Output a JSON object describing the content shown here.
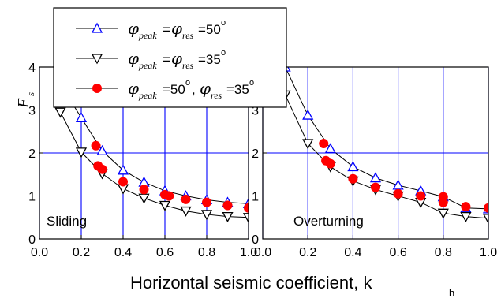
{
  "chart_data": [
    {
      "type": "line",
      "panel_label": "Sliding",
      "xlabel": "Horizontal seismic coefficient, k",
      "xlabel_sub": "h",
      "ylabel": "F",
      "ylabel_sub": "s",
      "xlim": [
        0.0,
        1.0
      ],
      "ylim": [
        0,
        4
      ],
      "xticks": [
        "0.0",
        "0.2",
        "0.4",
        "0.6",
        "0.8",
        "1.0"
      ],
      "yticks": [
        "0",
        "1",
        "2",
        "3",
        "4"
      ],
      "grid": true,
      "series": [
        {
          "name": "φpeak = φres = 50°",
          "marker": "triangle-up-open",
          "color": "#0000ff",
          "x": [
            0.1,
            0.2,
            0.3,
            0.4,
            0.5,
            0.6,
            0.7,
            0.8,
            0.9,
            1.0
          ],
          "y": [
            3.6,
            2.82,
            2.05,
            1.6,
            1.32,
            1.12,
            1.0,
            0.91,
            0.85,
            0.82
          ]
        },
        {
          "name": "φpeak = φres = 35°",
          "marker": "triangle-down-open",
          "color": "#000000",
          "x": [
            0.1,
            0.2,
            0.3,
            0.4,
            0.5,
            0.6,
            0.7,
            0.8,
            0.9,
            1.0
          ],
          "y": [
            2.95,
            2.02,
            1.52,
            1.17,
            0.95,
            0.78,
            0.65,
            0.57,
            0.52,
            0.5
          ]
        },
        {
          "name": "φpeak = 50°, φres = 35°",
          "marker": "circle-filled",
          "color": "#ff0000",
          "x": [
            0.27,
            0.28,
            0.3,
            0.4,
            0.5,
            0.6,
            0.62,
            0.7,
            0.8,
            0.9,
            1.0
          ],
          "y": [
            2.17,
            1.7,
            1.62,
            1.33,
            1.15,
            1.03,
            1.0,
            0.92,
            0.85,
            0.78,
            0.72
          ]
        }
      ]
    },
    {
      "type": "line",
      "panel_label": "Overturning",
      "xlim": [
        0.0,
        1.0
      ],
      "ylim": [
        0,
        4
      ],
      "xticks": [
        "0.0",
        "0.2",
        "0.4",
        "0.6",
        "0.8",
        "1.0"
      ],
      "yticks": [
        "0",
        "1",
        "2",
        "3",
        "4"
      ],
      "grid": true,
      "series": [
        {
          "name": "φpeak = φres = 50°",
          "marker": "triangle-up-open",
          "color": "#0000ff",
          "x": [
            0.1,
            0.2,
            0.3,
            0.4,
            0.5,
            0.6,
            0.7,
            0.8,
            0.9,
            1.0
          ],
          "y": [
            4.0,
            2.88,
            2.1,
            1.68,
            1.42,
            1.25,
            1.12,
            0.98,
            0.72,
            0.7
          ]
        },
        {
          "name": "φpeak = φres = 35°",
          "marker": "triangle-down-open",
          "color": "#000000",
          "x": [
            0.1,
            0.2,
            0.3,
            0.4,
            0.5,
            0.6,
            0.7,
            0.8,
            0.9,
            1.0
          ],
          "y": [
            3.35,
            2.22,
            1.68,
            1.35,
            1.15,
            1.0,
            0.85,
            0.6,
            0.52,
            0.48
          ]
        },
        {
          "name": "φpeak = 50°, φres = 35°",
          "marker": "circle-filled",
          "color": "#ff0000",
          "x": [
            0.27,
            0.28,
            0.3,
            0.4,
            0.5,
            0.6,
            0.7,
            0.8,
            0.8,
            0.9,
            1.0
          ],
          "y": [
            2.22,
            1.82,
            1.75,
            1.4,
            1.2,
            1.05,
            1.0,
            0.98,
            0.85,
            0.75,
            0.72
          ]
        }
      ]
    }
  ],
  "legend": {
    "placement": "top-left",
    "entries": [
      {
        "marker": "triangle-up-open",
        "color": "#0000ff",
        "phi": "φ",
        "sub1": "peak",
        "eq": "=",
        "phi2": "φ",
        "sub2": "res",
        "val": "=50",
        "deg": "o"
      },
      {
        "marker": "triangle-down-open",
        "color": "#000000",
        "phi": "φ",
        "sub1": "peak",
        "eq": "=",
        "phi2": "φ",
        "sub2": "res",
        "val": "=35",
        "deg": "o"
      },
      {
        "marker": "circle-filled",
        "color": "#ff0000",
        "phi": "φ",
        "sub1": "peak",
        "eq": "=50",
        "eq_deg": "o",
        "eq_comma": ",",
        "phi2": "φ",
        "sub2": "res",
        "val": "=35",
        "deg": "o"
      }
    ]
  }
}
